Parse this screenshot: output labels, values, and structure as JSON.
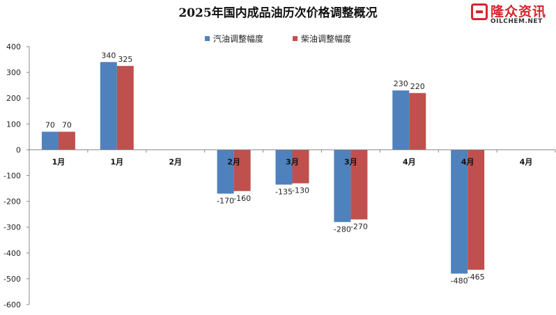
{
  "title": "2025年国内成品油历次价格调整概况",
  "logo": {
    "cn": "隆众资讯",
    "en": "OILCHEM.NET"
  },
  "colors": {
    "gasoline": "#4f81bd",
    "diesel": "#c0504d"
  },
  "chart_data": {
    "type": "bar",
    "categories": [
      "1月",
      "1月",
      "2月",
      "2月",
      "3月",
      "3月",
      "4月",
      "4月",
      "4月"
    ],
    "series": [
      {
        "name": "汽油调整幅度",
        "values": [
          70,
          340,
          null,
          -170,
          -135,
          -280,
          230,
          -480,
          null
        ]
      },
      {
        "name": "柴油调整幅度",
        "values": [
          70,
          325,
          null,
          -160,
          -130,
          -270,
          220,
          -465,
          null
        ]
      }
    ],
    "yticks": [
      400,
      300,
      200,
      100,
      0,
      -100,
      -200,
      -300,
      -400,
      -500,
      -600
    ],
    "ylim": [
      -600,
      400
    ],
    "grid": false,
    "legend": "top-center"
  }
}
